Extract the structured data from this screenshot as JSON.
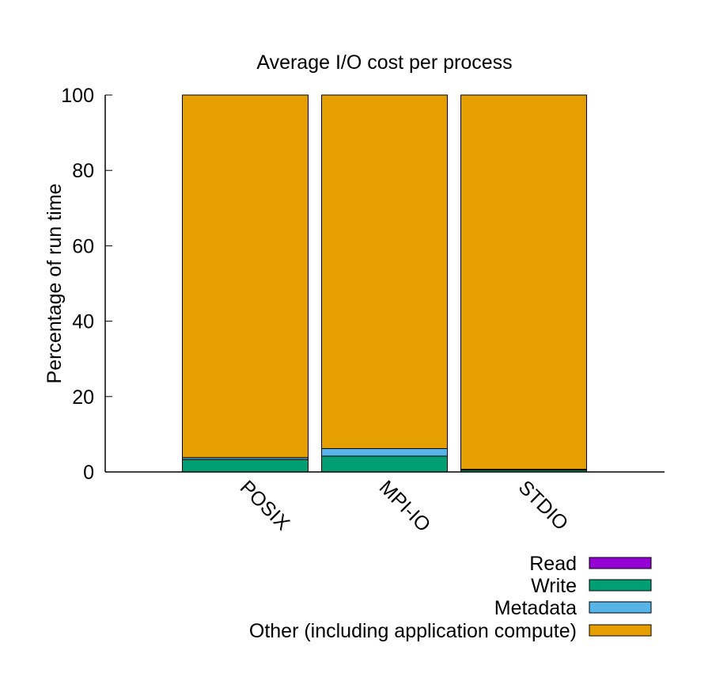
{
  "chart_data": {
    "type": "bar",
    "stacked": true,
    "title": "Average I/O cost per process",
    "xlabel": "",
    "ylabel": "Percentage of run time",
    "ylim": [
      0,
      100
    ],
    "yticks": [
      0,
      20,
      40,
      60,
      80,
      100
    ],
    "categories": [
      "POSIX",
      "MPI-IO",
      "STDIO"
    ],
    "series": [
      {
        "name": "Read",
        "color": "#9400d3",
        "values": [
          0.0,
          0.0,
          0.0
        ]
      },
      {
        "name": "Write",
        "color": "#009e73",
        "values": [
          3.3,
          4.2,
          0.5
        ]
      },
      {
        "name": "Metadata",
        "color": "#56b4e9",
        "values": [
          0.5,
          2.0,
          0.2
        ]
      },
      {
        "name": "Other (including application compute)",
        "color": "#e69f00",
        "values": [
          96.2,
          93.8,
          99.3
        ]
      }
    ],
    "legend_position": "bottom-right",
    "grid": false
  }
}
